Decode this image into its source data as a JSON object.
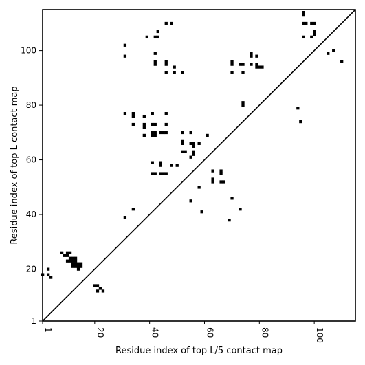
{
  "chart_data": {
    "type": "scatter",
    "title": "",
    "xlabel": "Residue index of top L/5 contact map",
    "ylabel": "Residue index of top L contact map",
    "xlim": [
      1,
      115
    ],
    "ylim": [
      1,
      115
    ],
    "xticks": [
      1,
      20,
      40,
      60,
      80,
      100
    ],
    "yticks": [
      1,
      20,
      40,
      60,
      80,
      100
    ],
    "grid": false,
    "marker": "square",
    "marker_color": "#000000",
    "diagonal_line": {
      "from": [
        1,
        1
      ],
      "to": [
        115,
        115
      ]
    },
    "series": [
      {
        "name": "",
        "points": [
          [
            1,
            18
          ],
          [
            3,
            18
          ],
          [
            4,
            17
          ],
          [
            3,
            20
          ],
          [
            8,
            26
          ],
          [
            9,
            25
          ],
          [
            10,
            26
          ],
          [
            11,
            26
          ],
          [
            10,
            25
          ],
          [
            11,
            24
          ],
          [
            12,
            24
          ],
          [
            13,
            24
          ],
          [
            10,
            23
          ],
          [
            11,
            23
          ],
          [
            12,
            23
          ],
          [
            13,
            23
          ],
          [
            12,
            22
          ],
          [
            13,
            22
          ],
          [
            14,
            22
          ],
          [
            15,
            22
          ],
          [
            12,
            21
          ],
          [
            13,
            21
          ],
          [
            14,
            21
          ],
          [
            15,
            21
          ],
          [
            14,
            20
          ],
          [
            20,
            14
          ],
          [
            21,
            14
          ],
          [
            22,
            13
          ],
          [
            21,
            12
          ],
          [
            23,
            12
          ],
          [
            31,
            39
          ],
          [
            34,
            42
          ],
          [
            31,
            77
          ],
          [
            34,
            77
          ],
          [
            34,
            76
          ],
          [
            34,
            73
          ],
          [
            38,
            76
          ],
          [
            38,
            73
          ],
          [
            38,
            72
          ],
          [
            38,
            69
          ],
          [
            41,
            77
          ],
          [
            41,
            73
          ],
          [
            42,
            73
          ],
          [
            41,
            70
          ],
          [
            42,
            70
          ],
          [
            41,
            69
          ],
          [
            42,
            69
          ],
          [
            41,
            59
          ],
          [
            44,
            59
          ],
          [
            44,
            58
          ],
          [
            48,
            58
          ],
          [
            50,
            58
          ],
          [
            41,
            55
          ],
          [
            42,
            55
          ],
          [
            44,
            55
          ],
          [
            45,
            55
          ],
          [
            46,
            55
          ],
          [
            44,
            70
          ],
          [
            45,
            70
          ],
          [
            46,
            70
          ],
          [
            46,
            73
          ],
          [
            46,
            77
          ],
          [
            52,
            70
          ],
          [
            55,
            70
          ],
          [
            52,
            67
          ],
          [
            52,
            66
          ],
          [
            55,
            66
          ],
          [
            56,
            66
          ],
          [
            58,
            66
          ],
          [
            56,
            65
          ],
          [
            61,
            69
          ],
          [
            52,
            63
          ],
          [
            53,
            63
          ],
          [
            56,
            63
          ],
          [
            56,
            62
          ],
          [
            55,
            61
          ],
          [
            63,
            56
          ],
          [
            66,
            56
          ],
          [
            66,
            55
          ],
          [
            63,
            53
          ],
          [
            63,
            52
          ],
          [
            66,
            52
          ],
          [
            67,
            52
          ],
          [
            58,
            50
          ],
          [
            55,
            45
          ],
          [
            59,
            41
          ],
          [
            70,
            46
          ],
          [
            73,
            42
          ],
          [
            69,
            38
          ],
          [
            31,
            102
          ],
          [
            31,
            98
          ],
          [
            39,
            105
          ],
          [
            42,
            105
          ],
          [
            43,
            105
          ],
          [
            43,
            107
          ],
          [
            46,
            110
          ],
          [
            48,
            110
          ],
          [
            42,
            99
          ],
          [
            42,
            96
          ],
          [
            42,
            95
          ],
          [
            46,
            96
          ],
          [
            46,
            95
          ],
          [
            46,
            92
          ],
          [
            49,
            94
          ],
          [
            49,
            92
          ],
          [
            52,
            92
          ],
          [
            70,
            96
          ],
          [
            70,
            95
          ],
          [
            73,
            95
          ],
          [
            74,
            95
          ],
          [
            70,
            92
          ],
          [
            74,
            92
          ],
          [
            77,
            99
          ],
          [
            77,
            98
          ],
          [
            79,
            98
          ],
          [
            77,
            95
          ],
          [
            79,
            95
          ],
          [
            79,
            94
          ],
          [
            80,
            94
          ],
          [
            81,
            94
          ],
          [
            74,
            81
          ],
          [
            74,
            80
          ],
          [
            96,
            114
          ],
          [
            96,
            113
          ],
          [
            96,
            110
          ],
          [
            97,
            110
          ],
          [
            99,
            110
          ],
          [
            100,
            110
          ],
          [
            100,
            107
          ],
          [
            100,
            106
          ],
          [
            96,
            105
          ],
          [
            99,
            105
          ],
          [
            105,
            99
          ],
          [
            107,
            100
          ],
          [
            110,
            96
          ],
          [
            94,
            79
          ],
          [
            95,
            74
          ]
        ]
      }
    ]
  }
}
